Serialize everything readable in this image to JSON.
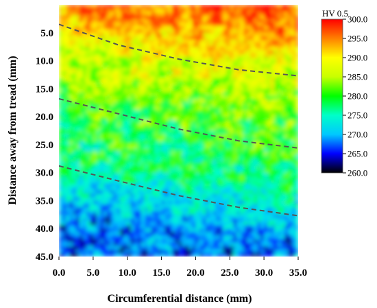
{
  "chart_data": {
    "type": "heatmap",
    "title": "",
    "xlabel": "Circumferential distance (mm)",
    "ylabel": "Distance away from tread (mm)",
    "xlim": [
      0,
      35
    ],
    "ylim": [
      0,
      45
    ],
    "y_inverted": true,
    "x_ticks": [
      "0.0",
      "5.0",
      "10.0",
      "15.0",
      "20.0",
      "25.0",
      "30.0",
      "35.0"
    ],
    "y_ticks": [
      "5.0",
      "10.0",
      "15.0",
      "20.0",
      "25.0",
      "30.0",
      "35.0",
      "40.0",
      "45.0"
    ],
    "colorbar": {
      "title": "HV 0.5",
      "min": 260,
      "max": 300,
      "ticks": [
        "300.0",
        "295.0",
        "290.0",
        "285.0",
        "280.0",
        "275.0",
        "270.0",
        "265.0",
        "260.0"
      ],
      "colormap": [
        "#000000",
        "#0000ff",
        "#00c8ff",
        "#00ffc8",
        "#00ff00",
        "#c8ff00",
        "#ffff00",
        "#ff8000",
        "#ff0000"
      ]
    },
    "hardness_trend": {
      "description_depths": [
        0,
        10,
        20,
        30,
        40,
        45
      ],
      "hardness_values": [
        297,
        287,
        281,
        277,
        268,
        267
      ]
    },
    "boundary_lines": [
      {
        "style": "dashed",
        "x": [
          0,
          8.75,
          17.5,
          26.25,
          35
        ],
        "y": [
          3.5,
          7.2,
          9.7,
          11.6,
          12.7
        ]
      },
      {
        "style": "dashed",
        "x": [
          0,
          8.75,
          17.5,
          26.25,
          35
        ],
        "y": [
          16.8,
          19.5,
          22.2,
          24.3,
          25.6
        ]
      },
      {
        "style": "dashed",
        "x": [
          0,
          8.75,
          17.5,
          26.25,
          35
        ],
        "y": [
          28.8,
          31.5,
          34.1,
          36.2,
          37.7
        ]
      }
    ]
  }
}
